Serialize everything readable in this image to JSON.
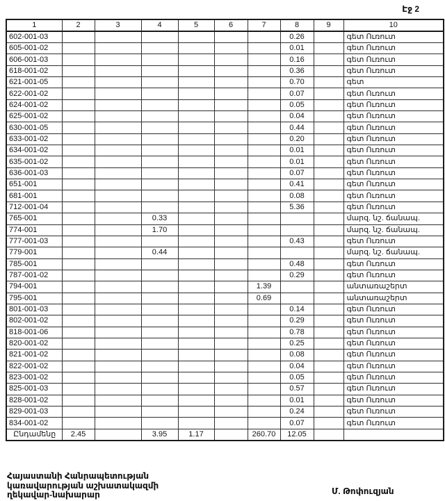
{
  "page": {
    "label": "Էջ 2"
  },
  "table": {
    "columns": [
      "1",
      "2",
      "3",
      "4",
      "5",
      "6",
      "7",
      "8",
      "9",
      "10"
    ],
    "rows": [
      [
        "602-001-03",
        "",
        "",
        "",
        "",
        "",
        "",
        "0.26",
        "",
        "գետ Ուռուտ"
      ],
      [
        "605-001-02",
        "",
        "",
        "",
        "",
        "",
        "",
        "0.01",
        "",
        "գետ Ուռուտ"
      ],
      [
        "606-001-03",
        "",
        "",
        "",
        "",
        "",
        "",
        "0.16",
        "",
        "գետ Ուռուտ"
      ],
      [
        "618-001-02",
        "",
        "",
        "",
        "",
        "",
        "",
        "0.36",
        "",
        "գետ Ուռուտ"
      ],
      [
        "621-001-05",
        "",
        "",
        "",
        "",
        "",
        "",
        "0.70",
        "",
        "գետ"
      ],
      [
        "622-001-02",
        "",
        "",
        "",
        "",
        "",
        "",
        "0.07",
        "",
        "գետ Ուռուտ"
      ],
      [
        "624-001-02",
        "",
        "",
        "",
        "",
        "",
        "",
        "0.05",
        "",
        "գետ Ուռուտ"
      ],
      [
        "625-001-02",
        "",
        "",
        "",
        "",
        "",
        "",
        "0.04",
        "",
        "գետ Ուռուտ"
      ],
      [
        "630-001-05",
        "",
        "",
        "",
        "",
        "",
        "",
        "0.44",
        "",
        "գետ Ուռուտ"
      ],
      [
        "633-001-02",
        "",
        "",
        "",
        "",
        "",
        "",
        "0.20",
        "",
        "գետ Ուռուտ"
      ],
      [
        "634-001-02",
        "",
        "",
        "",
        "",
        "",
        "",
        "0.01",
        "",
        "գետ Ուռուտ"
      ],
      [
        "635-001-02",
        "",
        "",
        "",
        "",
        "",
        "",
        "0.01",
        "",
        "գետ Ուռուտ"
      ],
      [
        "636-001-03",
        "",
        "",
        "",
        "",
        "",
        "",
        "0.07",
        "",
        "գետ Ուռուտ"
      ],
      [
        "651-001",
        "",
        "",
        "",
        "",
        "",
        "",
        "0.41",
        "",
        "գետ Ուռուտ"
      ],
      [
        "681-001",
        "",
        "",
        "",
        "",
        "",
        "",
        "0.08",
        "",
        "գետ Ուռուտ"
      ],
      [
        "712-001-04",
        "",
        "",
        "",
        "",
        "",
        "",
        "5.36",
        "",
        "գետ Ուռուտ"
      ],
      [
        "765-001",
        "",
        "",
        "0.33",
        "",
        "",
        "",
        "",
        "",
        "մարզ. նշ. ճանապ."
      ],
      [
        "774-001",
        "",
        "",
        "1.70",
        "",
        "",
        "",
        "",
        "",
        "մարզ. նշ. ճանապ."
      ],
      [
        "777-001-03",
        "",
        "",
        "",
        "",
        "",
        "",
        "0.43",
        "",
        "գետ Ուռուտ"
      ],
      [
        "779-001",
        "",
        "",
        "0.44",
        "",
        "",
        "",
        "",
        "",
        "մարզ. նշ. ճանապ."
      ],
      [
        "785-001",
        "",
        "",
        "",
        "",
        "",
        "",
        "0.48",
        "",
        "գետ Ուռուտ"
      ],
      [
        "787-001-02",
        "",
        "",
        "",
        "",
        "",
        "",
        "0.29",
        "",
        "գետ Ուռուտ"
      ],
      [
        "794-001",
        "",
        "",
        "",
        "",
        "",
        "1.39",
        "",
        "",
        "անտառաշերտ"
      ],
      [
        "795-001",
        "",
        "",
        "",
        "",
        "",
        "0.69",
        "",
        "",
        "անտառաշերտ"
      ],
      [
        "801-001-03",
        "",
        "",
        "",
        "",
        "",
        "",
        "0.14",
        "",
        "գետ Ուռուտ"
      ],
      [
        "802-001-02",
        "",
        "",
        "",
        "",
        "",
        "",
        "0.29",
        "",
        "գետ Ուռուտ"
      ],
      [
        "818-001-06",
        "",
        "",
        "",
        "",
        "",
        "",
        "0.78",
        "",
        "գետ Ուռուտ"
      ],
      [
        "820-001-02",
        "",
        "",
        "",
        "",
        "",
        "",
        "0.25",
        "",
        "գետ Ուռուտ"
      ],
      [
        "821-001-02",
        "",
        "",
        "",
        "",
        "",
        "",
        "0.08",
        "",
        "գետ Ուռուտ"
      ],
      [
        "822-001-02",
        "",
        "",
        "",
        "",
        "",
        "",
        "0.04",
        "",
        "գետ Ուռուտ"
      ],
      [
        "823-001-02",
        "",
        "",
        "",
        "",
        "",
        "",
        "0.05",
        "",
        "գետ Ուռուտ"
      ],
      [
        "825-001-03",
        "",
        "",
        "",
        "",
        "",
        "",
        "0.57",
        "",
        "գետ Ուռուտ"
      ],
      [
        "828-001-02",
        "",
        "",
        "",
        "",
        "",
        "",
        "0.01",
        "",
        "գետ Ուռուտ"
      ],
      [
        "829-001-03",
        "",
        "",
        "",
        "",
        "",
        "",
        "0.24",
        "",
        "գետ Ուռուտ"
      ],
      [
        "834-001-02",
        "",
        "",
        "",
        "",
        "",
        "",
        "0.07",
        "",
        "գետ Ուռուտ"
      ]
    ],
    "totals_row": [
      "Ընդամենը",
      "2.45",
      "",
      "3.95",
      "1.17",
      "",
      "260.70",
      "12.05",
      "",
      ""
    ]
  },
  "footer": {
    "left_lines": [
      "Հայաստանի Հանրապետության",
      "կառավարության աշխատակազմի",
      "ղեկավար-նախարար"
    ],
    "signature_name": "Մ. Թոփուզյան"
  }
}
